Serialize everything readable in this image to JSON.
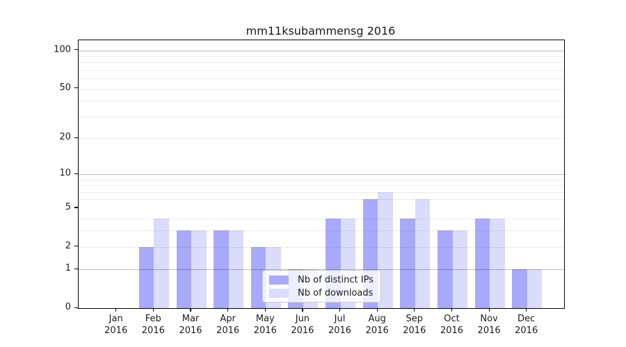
{
  "title": "mm11ksubammensg 2016",
  "legend": {
    "items": [
      {
        "label": "Nb of distinct IPs"
      },
      {
        "label": "Nb of downloads"
      }
    ]
  },
  "chart_data": {
    "type": "bar",
    "title": "mm11ksubammensg 2016",
    "y_scale": "log1p",
    "ylim": [
      0,
      120
    ],
    "y_ticks": [
      0,
      1,
      2,
      5,
      10,
      20,
      50,
      100
    ],
    "major_gridlines": [
      1,
      10,
      100
    ],
    "minor_gridlines": [
      2,
      3,
      4,
      6,
      7,
      8,
      9,
      20,
      30,
      40,
      50,
      60,
      70,
      80,
      90
    ],
    "categories": [
      "Jan",
      "Feb",
      "Mar",
      "Apr",
      "May",
      "Jun",
      "Jul",
      "Aug",
      "Sep",
      "Oct",
      "Nov",
      "Dec"
    ],
    "x_tick_year": "2016",
    "grid": true,
    "legend_position": "lower center",
    "series": [
      {
        "name": "Nb of distinct IPs",
        "color": "#a9a9f9",
        "values": [
          0,
          2,
          3,
          3,
          2,
          1,
          4,
          6,
          4,
          3,
          4,
          1
        ]
      },
      {
        "name": "Nb of downloads",
        "color": "#dbdbfb",
        "values": [
          0,
          4,
          3,
          3,
          2,
          1,
          4,
          7,
          6,
          3,
          4,
          1
        ]
      }
    ],
    "colors": {
      "bar_distinct_ips": "#a9a9f9",
      "bar_downloads": "#dbdbfb",
      "axis": "#000000",
      "text": "#1a1a1a",
      "legend_bg": "rgba(255,255,255,0.8)",
      "legend_border": "#cccccc"
    }
  }
}
